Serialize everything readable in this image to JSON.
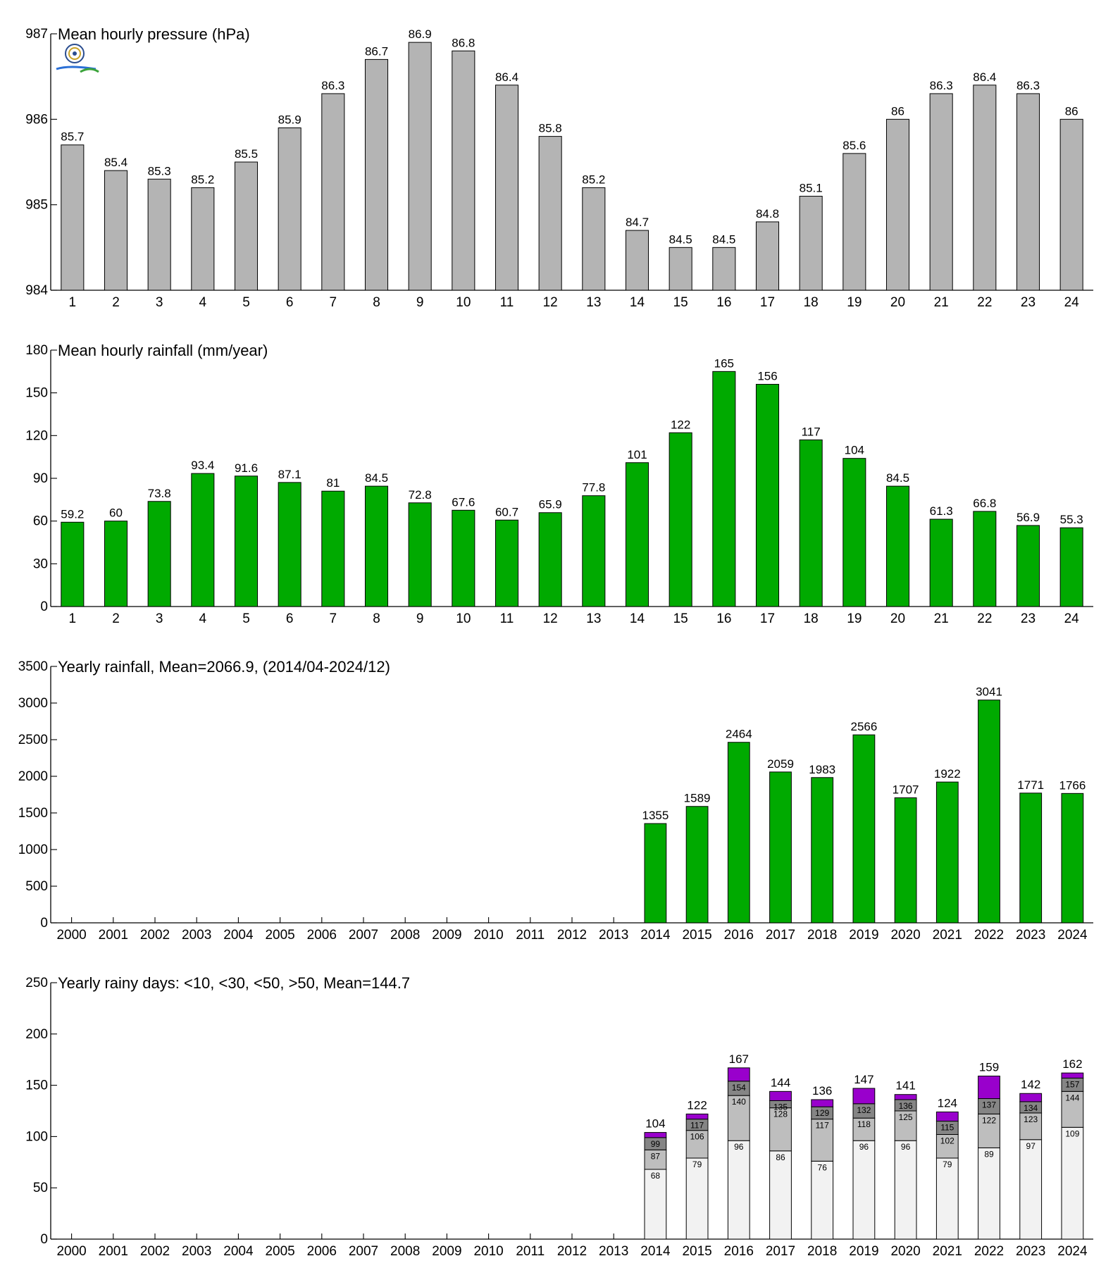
{
  "chart_data": [
    {
      "id": "pressure",
      "type": "bar",
      "title": "Mean hourly pressure (hPa)",
      "xlabel": "",
      "ylabel": "",
      "bar_color": "#b4b4b4",
      "ylim": [
        984,
        987
      ],
      "yticks": [
        984,
        985,
        986,
        987
      ],
      "categories": [
        "1",
        "2",
        "3",
        "4",
        "5",
        "6",
        "7",
        "8",
        "9",
        "10",
        "11",
        "12",
        "13",
        "14",
        "15",
        "16",
        "17",
        "18",
        "19",
        "20",
        "21",
        "22",
        "23",
        "24"
      ],
      "values": [
        985.7,
        985.4,
        985.3,
        985.2,
        985.5,
        985.9,
        986.3,
        986.7,
        986.9,
        986.8,
        986.4,
        985.8,
        985.2,
        984.7,
        984.5,
        984.5,
        984.8,
        985.1,
        985.6,
        986.0,
        986.3,
        986.4,
        986.3,
        986.0
      ],
      "value_labels": [
        "85.7",
        "85.4",
        "85.3",
        "85.2",
        "85.5",
        "85.9",
        "86.3",
        "86.7",
        "86.9",
        "86.8",
        "86.4",
        "85.8",
        "85.2",
        "84.7",
        "84.5",
        "84.5",
        "84.8",
        "85.1",
        "85.6",
        "86",
        "86.3",
        "86.4",
        "86.3",
        "86"
      ],
      "grid": false
    },
    {
      "id": "hourly-rain",
      "type": "bar",
      "title": "Mean hourly rainfall (mm/year)",
      "xlabel": "",
      "ylabel": "",
      "bar_color": "#00aa00",
      "ylim": [
        0,
        180
      ],
      "yticks": [
        0,
        30,
        60,
        90,
        120,
        150,
        180
      ],
      "categories": [
        "1",
        "2",
        "3",
        "4",
        "5",
        "6",
        "7",
        "8",
        "9",
        "10",
        "11",
        "12",
        "13",
        "14",
        "15",
        "16",
        "17",
        "18",
        "19",
        "20",
        "21",
        "22",
        "23",
        "24"
      ],
      "values": [
        59.2,
        60,
        73.8,
        93.4,
        91.6,
        87.1,
        81,
        84.5,
        72.8,
        67.6,
        60.7,
        65.9,
        77.8,
        101,
        122,
        165,
        156,
        117,
        104,
        84.5,
        61.3,
        66.8,
        56.9,
        55.3
      ],
      "value_labels": [
        "59.2",
        "60",
        "73.8",
        "93.4",
        "91.6",
        "87.1",
        "81",
        "84.5",
        "72.8",
        "67.6",
        "60.7",
        "65.9",
        "77.8",
        "101",
        "122",
        "165",
        "156",
        "117",
        "104",
        "84.5",
        "61.3",
        "66.8",
        "56.9",
        "55.3"
      ],
      "grid": false
    },
    {
      "id": "yearly-rain",
      "type": "bar",
      "title": "Yearly rainfall, Mean=2066.9, (2014/04-2024/12)",
      "xlabel": "",
      "ylabel": "",
      "bar_color": "#00aa00",
      "ylim": [
        0,
        3500
      ],
      "yticks": [
        0,
        500,
        1000,
        1500,
        2000,
        2500,
        3000,
        3500
      ],
      "categories": [
        "2000",
        "2001",
        "2002",
        "2003",
        "2004",
        "2005",
        "2006",
        "2007",
        "2008",
        "2009",
        "2010",
        "2011",
        "2012",
        "2013",
        "2014",
        "2015",
        "2016",
        "2017",
        "2018",
        "2019",
        "2020",
        "2021",
        "2022",
        "2023",
        "2024"
      ],
      "values": [
        null,
        null,
        null,
        null,
        null,
        null,
        null,
        null,
        null,
        null,
        null,
        null,
        null,
        null,
        1355,
        1589,
        2464,
        2059,
        1983,
        2566,
        1707,
        1922,
        3041,
        1771,
        1766
      ],
      "value_labels": [
        "",
        "",
        "",
        "",
        "",
        "",
        "",
        "",
        "",
        "",
        "",
        "",
        "",
        "",
        "1355",
        "1589",
        "2464",
        "2059",
        "1983",
        "2566",
        "1707",
        "1922",
        "3041",
        "1771",
        "1766"
      ],
      "grid": false
    },
    {
      "id": "rainy-days",
      "type": "bar",
      "stacked": true,
      "title": "Yearly rainy days: <10, <30, <50, >50, Mean=144.7",
      "xlabel": "",
      "ylabel": "",
      "ylim": [
        0,
        250
      ],
      "yticks": [
        0,
        50,
        100,
        150,
        200,
        250
      ],
      "categories": [
        "2000",
        "2001",
        "2002",
        "2003",
        "2004",
        "2005",
        "2006",
        "2007",
        "2008",
        "2009",
        "2010",
        "2011",
        "2012",
        "2013",
        "2014",
        "2015",
        "2016",
        "2017",
        "2018",
        "2019",
        "2020",
        "2021",
        "2022",
        "2023",
        "2024"
      ],
      "series_colors": [
        "#f2f2f2",
        "#bebebe",
        "#858585",
        "#9900cc"
      ],
      "cumulative": [
        {
          "year": "2014",
          "levels": [
            68,
            87,
            99,
            104
          ]
        },
        {
          "year": "2015",
          "levels": [
            79,
            106,
            117,
            122
          ]
        },
        {
          "year": "2016",
          "levels": [
            96,
            140,
            154,
            167
          ]
        },
        {
          "year": "2017",
          "levels": [
            86,
            128,
            135,
            144
          ]
        },
        {
          "year": "2018",
          "levels": [
            76,
            117,
            129,
            136
          ]
        },
        {
          "year": "2019",
          "levels": [
            96,
            118,
            132,
            147
          ]
        },
        {
          "year": "2020",
          "levels": [
            96,
            125,
            136,
            141
          ]
        },
        {
          "year": "2021",
          "levels": [
            79,
            102,
            115,
            124
          ]
        },
        {
          "year": "2022",
          "levels": [
            89,
            122,
            137,
            159
          ]
        },
        {
          "year": "2023",
          "levels": [
            97,
            123,
            134,
            142
          ]
        },
        {
          "year": "2024",
          "levels": [
            109,
            144,
            157,
            162
          ]
        }
      ],
      "grid": false
    }
  ]
}
